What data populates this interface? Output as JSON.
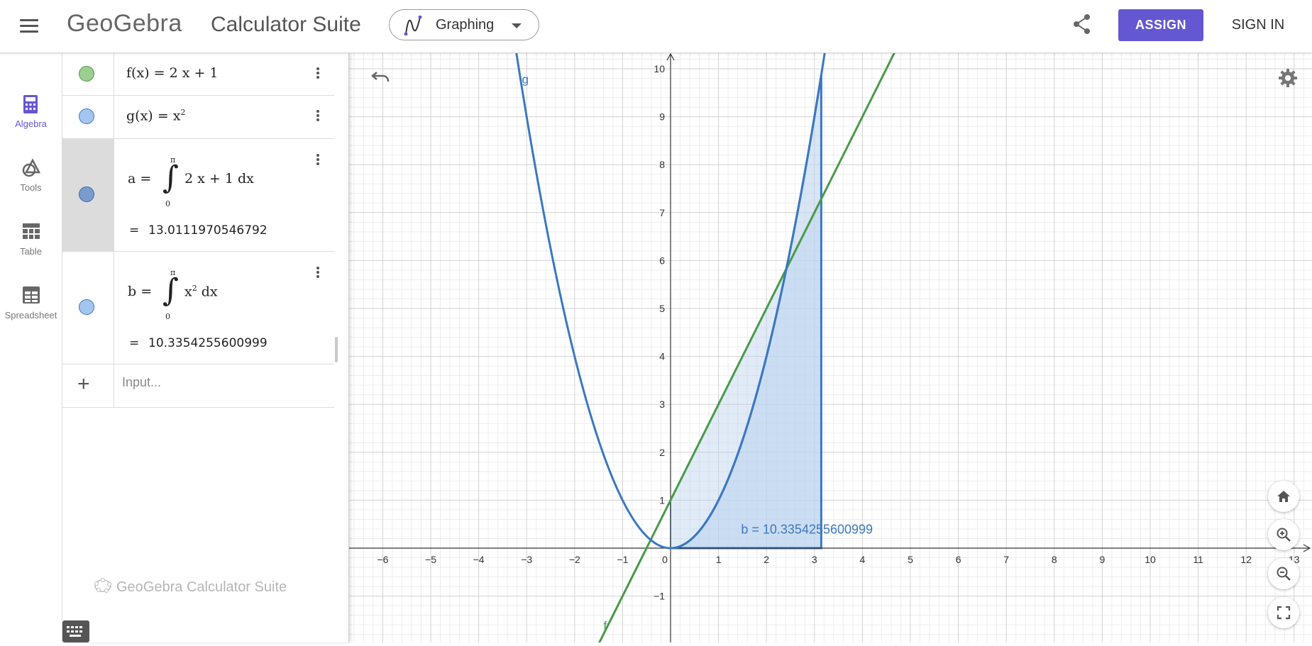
{
  "header": {
    "logo": "GeoGebra",
    "suite_title": "Calculator Suite",
    "app_picker": "Graphing",
    "assign": "ASSIGN",
    "sign_in": "SIGN IN"
  },
  "rail": {
    "items": [
      {
        "label": "Algebra",
        "icon": "calculator-icon"
      },
      {
        "label": "Tools",
        "icon": "shapes-icon"
      },
      {
        "label": "Table",
        "icon": "table-icon"
      },
      {
        "label": "Spreadsheet",
        "icon": "spreadsheet-icon"
      }
    ]
  },
  "algebra": {
    "rows": [
      {
        "name": "f",
        "text": "f(x)  =  2 x + 1",
        "color": "#9bcf8f"
      },
      {
        "name": "g",
        "text": "g(x)  =  x",
        "sup": "2",
        "color": "#a4c5ef"
      },
      {
        "name": "a",
        "lhs": "a  =",
        "upper": "π",
        "lower": "0",
        "integrand": "2 x + 1 dx",
        "result_label": "=",
        "result": "13.0111970546792",
        "color": "#7a9ccc"
      },
      {
        "name": "b",
        "lhs": "b  =",
        "upper": "π",
        "lower": "0",
        "integrand": "x",
        "integrand_sup": "2",
        "integrand_tail": " dx",
        "result_label": "=",
        "result": "10.3354255600999",
        "color": "#a4c5ef"
      }
    ],
    "input_placeholder": "Input...",
    "footer": "GeoGebra Calculator Suite"
  },
  "graph": {
    "x_ticks": [
      "−6",
      "−5",
      "−4",
      "−3",
      "−2",
      "−1",
      "0",
      "1",
      "2",
      "3",
      "4",
      "5",
      "6",
      "7",
      "8",
      "9",
      "10",
      "11",
      "12",
      "13"
    ],
    "y_ticks": [
      "−1",
      "1",
      "2",
      "3",
      "4",
      "5",
      "6",
      "7",
      "8",
      "9",
      "10"
    ],
    "label_g": "g",
    "label_f": "f",
    "label_b": "b = 10.3354255600999",
    "colors": {
      "g": "#3b78c2",
      "f": "#4a9a4a",
      "fill": "#bcd3ee"
    }
  }
}
